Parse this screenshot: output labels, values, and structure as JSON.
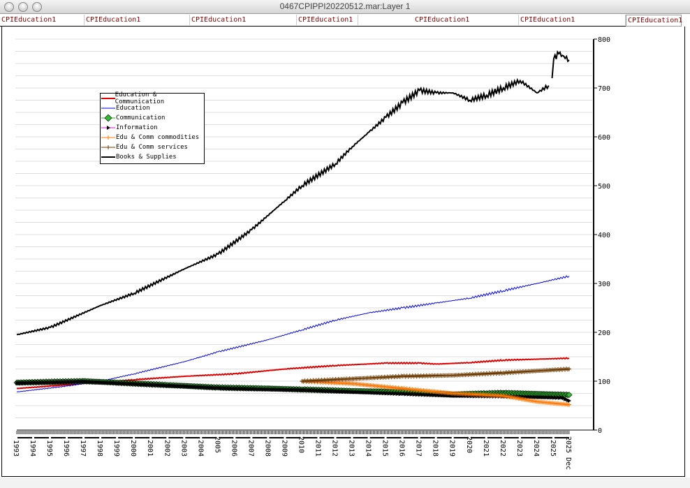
{
  "window": {
    "title": "0467CPIPPI20220512.mar:Layer 1"
  },
  "tabs": [
    "CPIEducation1",
    "CPIEducation1",
    "CPIEducation1",
    "CPIEducation1",
    "CPIEducation1",
    "CPIEducation1",
    "CPIEducation1"
  ],
  "chart_data": {
    "type": "line",
    "title": "",
    "xlabel": "",
    "ylabel": "",
    "xlim": [
      1993,
      2025.92
    ],
    "ylim": [
      0,
      800
    ],
    "y_ticks": [
      0,
      100,
      200,
      300,
      400,
      500,
      600,
      700,
      800
    ],
    "x_ticks": [
      "1993",
      "1994",
      "1995",
      "1996",
      "1997",
      "1998",
      "1999",
      "2000",
      "2001",
      "2002",
      "2003",
      "2004",
      "2005",
      "2006",
      "2007",
      "2008",
      "2009",
      "2010",
      "2011",
      "2012",
      "2013",
      "2014",
      "2015",
      "2016",
      "2017",
      "2018",
      "2019",
      "2020",
      "2021",
      "2022",
      "2023",
      "2024",
      "2025",
      "2025 Dec"
    ],
    "grid": true,
    "legend_position": "top-left",
    "series": [
      {
        "name": "Education & Communication",
        "color": "#e00000",
        "marker": "none",
        "x": [
          1993,
          1995,
          1998,
          2000,
          2003,
          2006,
          2009,
          2012,
          2015,
          2017,
          2018,
          2020,
          2022,
          2025.92
        ],
        "y": [
          85,
          90,
          98,
          103,
          110,
          115,
          125,
          132,
          137,
          137,
          135,
          138,
          143,
          147
        ]
      },
      {
        "name": "Education",
        "color": "#0000ee",
        "marker": "none",
        "x": [
          1993,
          1996,
          1998,
          2000,
          2003,
          2005,
          2008,
          2010,
          2012,
          2014,
          2016,
          2018,
          2020,
          2022,
          2024,
          2025.92
        ],
        "y": [
          78,
          90,
          100,
          115,
          140,
          160,
          185,
          205,
          225,
          240,
          250,
          260,
          270,
          285,
          300,
          315
        ]
      },
      {
        "name": "Communication",
        "color": "#22aa22",
        "marker": "diamond",
        "x": [
          1993,
          1997,
          1999,
          2002,
          2005,
          2008,
          2010,
          2013,
          2016,
          2019,
          2021,
          2022,
          2025.92
        ],
        "y": [
          97,
          100,
          97,
          92,
          87,
          85,
          83,
          80,
          78,
          73,
          75,
          76,
          72
        ]
      },
      {
        "name": "Information",
        "color": "#ee00ee",
        "marker": "triangle",
        "x": [
          1993,
          1997,
          1999,
          2002,
          2005,
          2008,
          2010,
          2013,
          2016,
          2019,
          2022,
          2025.5,
          2025.92
        ],
        "y": [
          96,
          99,
          96,
          91,
          86,
          83,
          82,
          78,
          74,
          70,
          69,
          66,
          60
        ]
      },
      {
        "name": "Edu & Comm commodities",
        "color": "#ff7700",
        "marker": "plus",
        "x": [
          2010,
          2013,
          2016,
          2019,
          2022,
          2024,
          2025.92
        ],
        "y": [
          100,
          95,
          85,
          75,
          70,
          58,
          52
        ]
      },
      {
        "name": "Edu & Comm services",
        "color": "#6b3a00",
        "marker": "plus",
        "x": [
          2010,
          2013,
          2016,
          2019,
          2022,
          2025.92
        ],
        "y": [
          100,
          105,
          110,
          112,
          117,
          125
        ]
      },
      {
        "name": "Books & Supplies",
        "color": "#000000",
        "marker": "none",
        "x": [
          1993,
          1995,
          1998,
          2000,
          2003,
          2005,
          2007,
          2009,
          2010,
          2012,
          2013,
          2014,
          2015,
          2016,
          2017,
          2018,
          2019,
          2020,
          2021,
          2022,
          2023,
          2024,
          2024.7,
          null,
          2024.9,
          2025,
          2025.3,
          2025.6,
          2025.92
        ],
        "y": [
          195,
          210,
          255,
          280,
          330,
          360,
          410,
          470,
          500,
          545,
          580,
          610,
          640,
          670,
          695,
          690,
          690,
          675,
          685,
          700,
          715,
          690,
          705,
          null,
          720,
          760,
          770,
          765,
          757
        ]
      }
    ]
  }
}
